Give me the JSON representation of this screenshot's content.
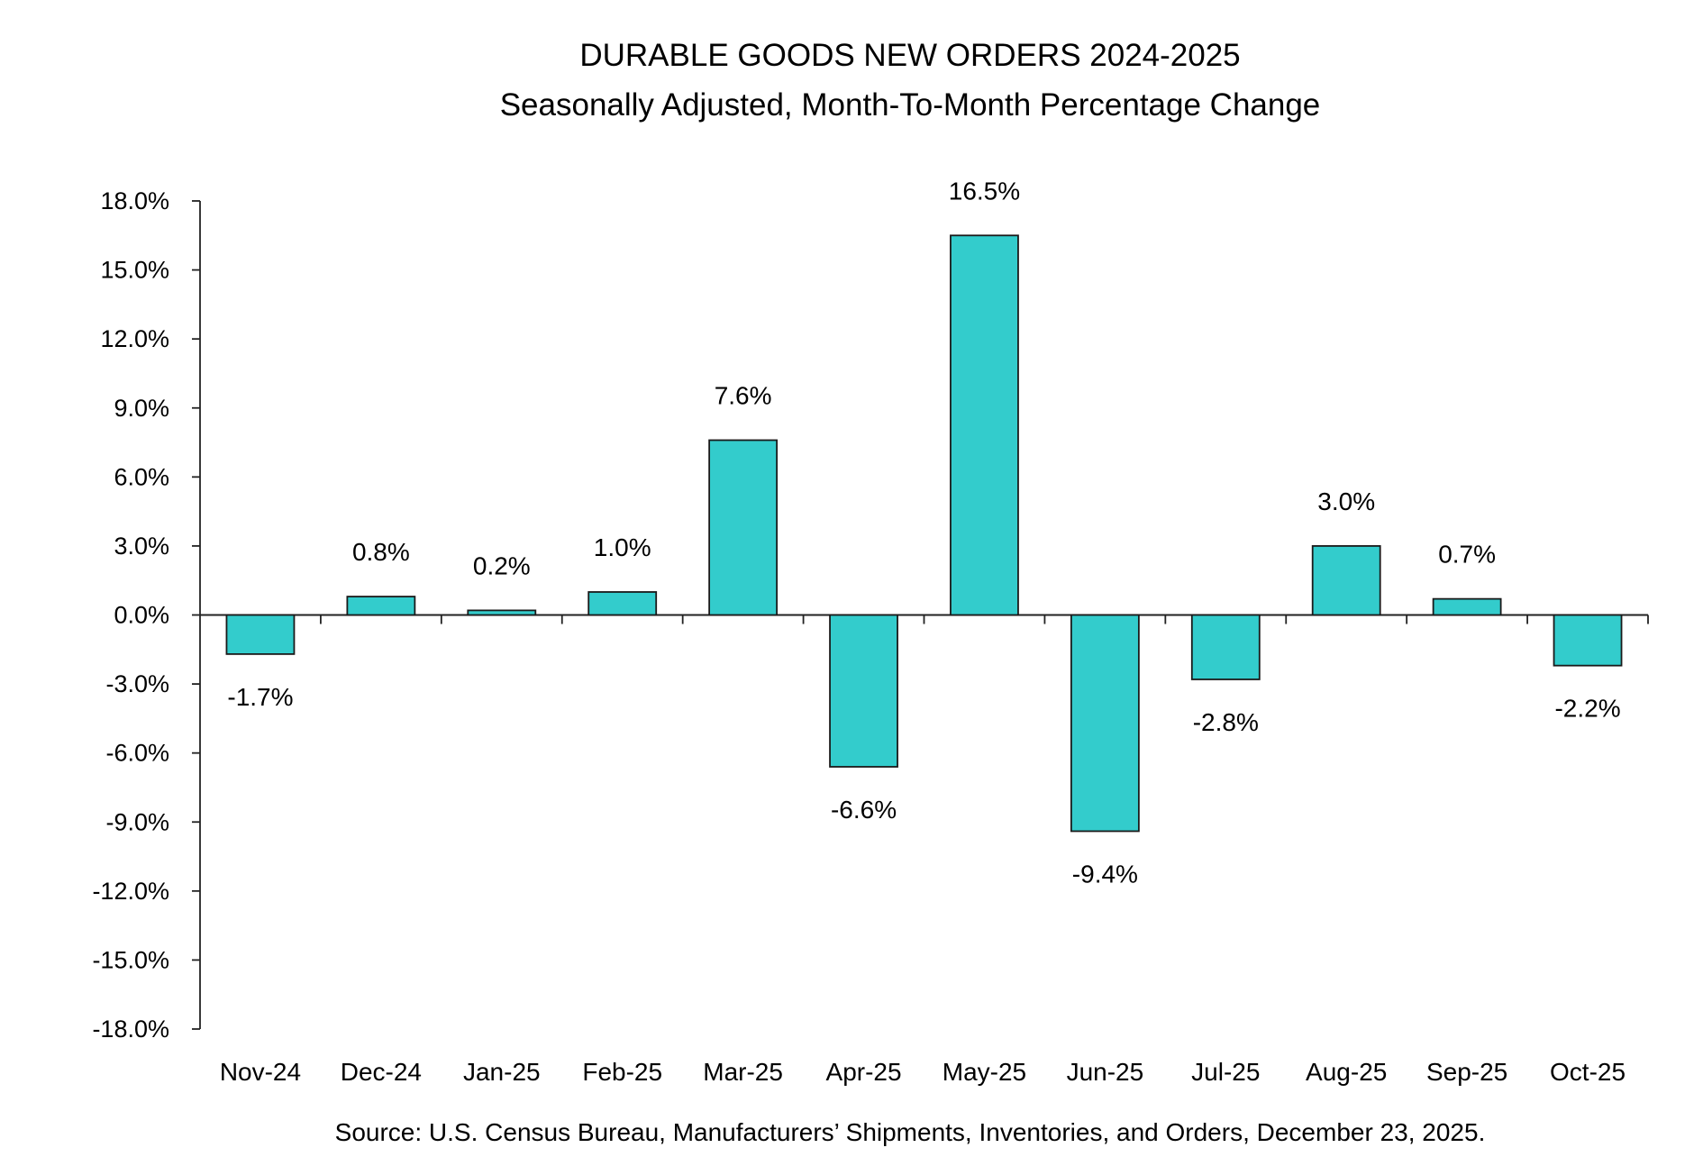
{
  "chart_data": {
    "type": "bar",
    "title": "DURABLE GOODS NEW ORDERS 2024-2025",
    "subtitle": "Seasonally Adjusted,  Month-To-Month Percentage Change",
    "xlabel": "",
    "ylabel": "",
    "categories": [
      "Nov-24",
      "Dec-24",
      "Jan-25",
      "Feb-25",
      "Mar-25",
      "Apr-25",
      "May-25",
      "Jun-25",
      "Jul-25",
      "Aug-25",
      "Sep-25",
      "Oct-25"
    ],
    "values": [
      -1.7,
      0.8,
      0.2,
      1.0,
      7.6,
      -6.6,
      16.5,
      -9.4,
      -2.8,
      3.0,
      0.7,
      -2.2
    ],
    "data_labels": [
      "-1.7%",
      "0.8%",
      "0.2%",
      "1.0%",
      "7.6%",
      "-6.6%",
      "16.5%",
      "-9.4%",
      "-2.8%",
      "3.0%",
      "0.7%",
      "-2.2%"
    ],
    "ylim": [
      -18,
      18
    ],
    "y_ticks": [
      18,
      15,
      12,
      9,
      6,
      3,
      0,
      -3,
      -6,
      -9,
      -12,
      -15,
      -18
    ],
    "y_tick_labels": [
      "18.0%",
      "15.0%",
      "12.0%",
      "9.0%",
      "6.0%",
      "3.0%",
      "0.0%",
      "-3.0%",
      "-6.0%",
      "-9.0%",
      "-12.0%",
      "-15.0%",
      "-18.0%"
    ],
    "grid": false,
    "legend": "none",
    "bar_color": "#33CCCC",
    "bar_edge_color": "#1a1a1a",
    "source": "Source: U.S. Census Bureau, Manufacturers’ Shipments, Inventories, and Orders, December 23, 2025."
  }
}
